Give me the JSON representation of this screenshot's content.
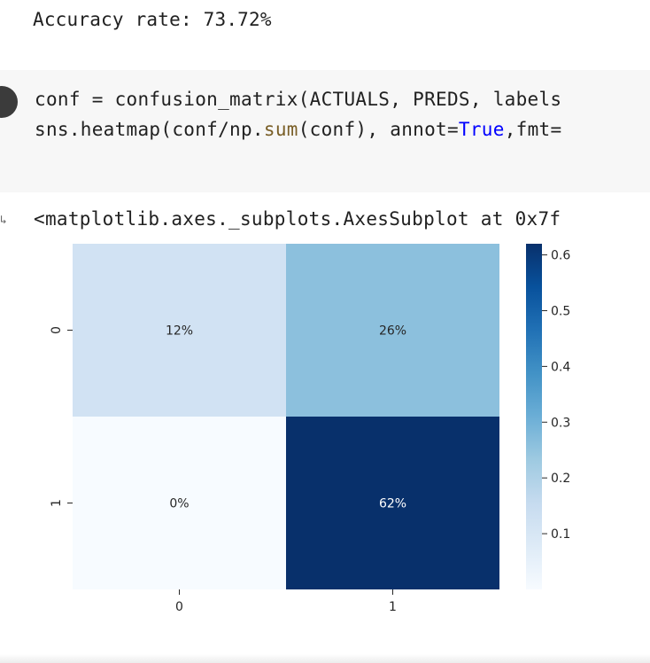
{
  "stdout": {
    "text": "Accuracy rate: 73.72%"
  },
  "code": {
    "line1": "conf = confusion_matrix(ACTUALS, PREDS, labels",
    "line2_a": "sns.heatmap(conf/np.",
    "line2_fn": "sum",
    "line2_b": "(conf), annot=",
    "line2_kw": "True",
    "line2_c": ",fmt="
  },
  "output": {
    "arrow": "↳",
    "repr": "<matplotlib.axes._subplots.AxesSubplot at 0x7f"
  },
  "colors": {
    "cmap": [
      "#f7fbff",
      "#deebf7",
      "#c6dbef",
      "#9ecae1",
      "#6baed6",
      "#4292c6",
      "#2171b5",
      "#08519c",
      "#08306b"
    ],
    "code_bg": "#f7f7f7",
    "keyword": "#0000ff",
    "builtin": "#795e26"
  },
  "chart_data": {
    "type": "heatmap",
    "rows": [
      "0",
      "1"
    ],
    "cols": [
      "0",
      "1"
    ],
    "values": [
      [
        0.12,
        0.26
      ],
      [
        0.0,
        0.62
      ]
    ],
    "annotations": [
      [
        "12%",
        "26%"
      ],
      [
        "0%",
        "62%"
      ]
    ],
    "colorbar": {
      "vmin": 0.0,
      "vmax": 0.62,
      "ticks": [
        0.1,
        0.2,
        0.3,
        0.4,
        0.5,
        0.6
      ],
      "tick_labels": [
        "0.1",
        "0.2",
        "0.3",
        "0.4",
        "0.5",
        "0.6"
      ]
    },
    "colormap": "Blues",
    "title": "",
    "xlabel": "",
    "ylabel": ""
  }
}
